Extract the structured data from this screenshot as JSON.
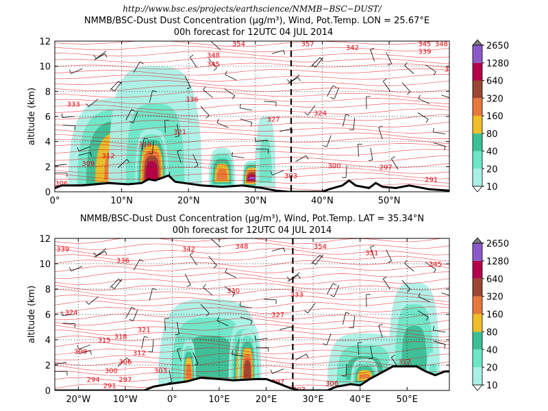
{
  "figure": {
    "url_line": "http://www.bsc.es/projects/earthscience/NMMB−BSC−DUST/"
  },
  "chart_data": [
    {
      "type": "heatmap",
      "title": "NMMB/BSC-Dust Dust Concentration (µg/m³), Wind, Pot.Temp. LON = 25.67°E",
      "subtitle": "00h forecast for 12UTC 04 JUL 2014",
      "xlabel": "",
      "ylabel": "altitude (km)",
      "xlim": [
        0,
        59
      ],
      "ylim": [
        0,
        12
      ],
      "x_ticks": [
        0,
        10,
        20,
        30,
        40,
        50
      ],
      "x_tick_labels": [
        "0°",
        "10°N",
        "20°N",
        "30°N",
        "40°N",
        "50°N"
      ],
      "y_ticks": [
        0,
        2,
        4,
        6,
        8,
        10,
        12
      ],
      "y_tick_labels": [
        "0",
        "2",
        "4",
        "6",
        "8",
        "10",
        "12"
      ],
      "grid": true,
      "cross_section_marker": 35.34,
      "colorbar": {
        "levels": [
          10,
          20,
          40,
          80,
          160,
          320,
          640,
          1280,
          2650
        ],
        "labels": [
          "10",
          "20",
          "40",
          "80",
          "160",
          "320",
          "640",
          "1280",
          "2650"
        ],
        "colors": [
          "#aaf0e6",
          "#6ee6c8",
          "#3cbe96",
          "#f0be28",
          "#e6783c",
          "#9b4632",
          "#b4004b",
          "#8c5ac8"
        ]
      },
      "dust_plumes": [
        {
          "x_range": [
            2,
            20
          ],
          "top_km": 7.5,
          "max_level": 4
        },
        {
          "x_range": [
            8,
            22
          ],
          "top_km": 10.0,
          "max_level": 1
        },
        {
          "x_range": [
            12,
            17
          ],
          "top_km": 5.0,
          "max_level": 6
        },
        {
          "x_range": [
            23,
            27
          ],
          "top_km": 3.5,
          "max_level": 4
        },
        {
          "x_range": [
            28,
            31
          ],
          "top_km": 2.5,
          "max_level": 7
        },
        {
          "x_range": [
            30,
            33
          ],
          "top_km": 6.0,
          "max_level": 1
        }
      ],
      "terrain_km": [
        [
          0,
          0.3
        ],
        [
          1,
          0.5
        ],
        [
          4,
          0.5
        ],
        [
          8,
          0.7
        ],
        [
          11,
          0.6
        ],
        [
          13,
          0.7
        ],
        [
          14,
          1.0
        ],
        [
          15,
          0.9
        ],
        [
          17,
          1.3
        ],
        [
          18,
          0.8
        ],
        [
          22,
          0.5
        ],
        [
          25,
          0.4
        ],
        [
          28,
          0.5
        ],
        [
          31,
          0.3
        ],
        [
          33,
          0.1
        ],
        [
          35,
          0.0
        ],
        [
          40,
          0.0
        ],
        [
          41,
          0.2
        ],
        [
          43,
          0.5
        ],
        [
          44,
          0.9
        ],
        [
          45,
          0.5
        ],
        [
          47,
          0.3
        ],
        [
          48,
          0.7
        ],
        [
          49,
          0.4
        ],
        [
          51,
          0.3
        ],
        [
          53,
          0.5
        ],
        [
          56,
          0.2
        ],
        [
          59,
          0.1
        ]
      ],
      "theta_labels": [
        {
          "x": 1,
          "y": 0.7,
          "text": "306"
        },
        {
          "x": 5,
          "y": 2.3,
          "text": "309"
        },
        {
          "x": 8,
          "y": 2.9,
          "text": "312"
        },
        {
          "x": 2.8,
          "y": 7.0,
          "text": "333"
        },
        {
          "x": 13.5,
          "y": 3.8,
          "text": "318"
        },
        {
          "x": 18.7,
          "y": 4.8,
          "text": "321"
        },
        {
          "x": 20.5,
          "y": 7.4,
          "text": "336"
        },
        {
          "x": 23.7,
          "y": 10.2,
          "text": "345"
        },
        {
          "x": 23.7,
          "y": 10.9,
          "text": "348"
        },
        {
          "x": 27.5,
          "y": 11.8,
          "text": "354"
        },
        {
          "x": 32.7,
          "y": 5.8,
          "text": "327"
        },
        {
          "x": 35.3,
          "y": 1.3,
          "text": "303"
        },
        {
          "x": 37.8,
          "y": 11.8,
          "text": "357"
        },
        {
          "x": 39.7,
          "y": 6.3,
          "text": "324"
        },
        {
          "x": 41.8,
          "y": 2.1,
          "text": "300"
        },
        {
          "x": 44.5,
          "y": 11.5,
          "text": "342"
        },
        {
          "x": 49.5,
          "y": 2.0,
          "text": "297"
        },
        {
          "x": 53.5,
          "y": 0.2,
          "text": "294"
        },
        {
          "x": 56.3,
          "y": 1.0,
          "text": "291"
        },
        {
          "x": 55.3,
          "y": 11.2,
          "text": "339"
        },
        {
          "x": 55.3,
          "y": 11.8,
          "text": "345"
        },
        {
          "x": 57.8,
          "y": 11.8,
          "text": "348"
        },
        {
          "x": 58.6,
          "y": 9.8,
          "text": "3"
        }
      ]
    },
    {
      "type": "heatmap",
      "title": "NMMB/BSC-Dust Dust Concentration (µg/m³), Wind, Pot.Temp. LAT = 35.34°N",
      "subtitle": "00h forecast for 12UTC 04 JUL 2014",
      "xlabel": "",
      "ylabel": "altitude (km)",
      "xlim": [
        -25,
        59
      ],
      "ylim": [
        0,
        12
      ],
      "x_ticks": [
        -20,
        -10,
        0,
        10,
        20,
        30,
        40,
        50
      ],
      "x_tick_labels": [
        "20°W",
        "10°W",
        "0°",
        "10°E",
        "20°E",
        "30°E",
        "40°E",
        "50°E"
      ],
      "y_ticks": [
        0,
        2,
        4,
        6,
        8,
        10,
        12
      ],
      "y_tick_labels": [
        "0",
        "2",
        "4",
        "6",
        "8",
        "10",
        "12"
      ],
      "grid": true,
      "cross_section_marker": 25.67,
      "colorbar": {
        "levels": [
          10,
          20,
          40,
          80,
          160,
          320,
          640,
          1280,
          2650
        ],
        "labels": [
          "10",
          "20",
          "40",
          "80",
          "160",
          "320",
          "640",
          "1280",
          "2650"
        ],
        "colors": [
          "#aaf0e6",
          "#6ee6c8",
          "#3cbe96",
          "#f0be28",
          "#e6783c",
          "#9b4632",
          "#b4004b",
          "#8c5ac8"
        ]
      },
      "dust_plumes": [
        {
          "x_range": [
            -3,
            19
          ],
          "top_km": 7.2,
          "max_level": 2
        },
        {
          "x_range": [
            2,
            5
          ],
          "top_km": 4.0,
          "max_level": 4
        },
        {
          "x_range": [
            12,
            19
          ],
          "top_km": 5.5,
          "max_level": 4
        },
        {
          "x_range": [
            14,
            18
          ],
          "top_km": 4.8,
          "max_level": 5
        },
        {
          "x_range": [
            33,
            49
          ],
          "top_km": 4.5,
          "max_level": 2
        },
        {
          "x_range": [
            38,
            44
          ],
          "top_km": 2.5,
          "max_level": 4
        },
        {
          "x_range": [
            46,
            57
          ],
          "top_km": 8.5,
          "max_level": 2
        },
        {
          "x_range": [
            54,
            57
          ],
          "top_km": 3.0,
          "max_level": 1
        }
      ],
      "terrain_km": [
        [
          -25,
          0
        ],
        [
          -6,
          0
        ],
        [
          -4,
          0.3
        ],
        [
          -1,
          0.5
        ],
        [
          3,
          0.7
        ],
        [
          6,
          1.0
        ],
        [
          10,
          0.9
        ],
        [
          13,
          0.8
        ],
        [
          18,
          0.9
        ],
        [
          20,
          0.9
        ],
        [
          23,
          0.5
        ],
        [
          25,
          0.2
        ],
        [
          27,
          0
        ],
        [
          33,
          0
        ],
        [
          35,
          0.3
        ],
        [
          38,
          0.5
        ],
        [
          40,
          0.4
        ],
        [
          42,
          0.9
        ],
        [
          44,
          1.3
        ],
        [
          47,
          1.9
        ],
        [
          52,
          1.9
        ],
        [
          54,
          1.5
        ],
        [
          56,
          1.2
        ],
        [
          58,
          1.5
        ],
        [
          59,
          1.5
        ]
      ],
      "theta_labels": [
        {
          "x": -23.3,
          "y": 11.2,
          "text": "339"
        },
        {
          "x": -10.5,
          "y": 10.3,
          "text": "336"
        },
        {
          "x": -21.5,
          "y": 6.2,
          "text": "324"
        },
        {
          "x": -14.5,
          "y": 4.0,
          "text": "315"
        },
        {
          "x": -11,
          "y": 4.3,
          "text": "318"
        },
        {
          "x": -6,
          "y": 4.8,
          "text": "321"
        },
        {
          "x": -19.5,
          "y": 3.1,
          "text": "309"
        },
        {
          "x": -7,
          "y": 3.0,
          "text": "312"
        },
        {
          "x": -10,
          "y": 2.3,
          "text": "306"
        },
        {
          "x": -13,
          "y": 1.6,
          "text": "300"
        },
        {
          "x": -2.5,
          "y": 1.6,
          "text": "303"
        },
        {
          "x": -16.8,
          "y": 0.9,
          "text": "294"
        },
        {
          "x": -10,
          "y": 0.9,
          "text": "297"
        },
        {
          "x": -13.3,
          "y": 0.4,
          "text": "291"
        },
        {
          "x": 3.5,
          "y": 11.2,
          "text": "342"
        },
        {
          "x": 13,
          "y": 7.9,
          "text": "330"
        },
        {
          "x": 14.8,
          "y": 11.4,
          "text": "348"
        },
        {
          "x": 22.5,
          "y": 6.0,
          "text": "327"
        },
        {
          "x": 26.5,
          "y": 7.6,
          "text": "333"
        },
        {
          "x": 10,
          "y": 0.2,
          "text": "300"
        },
        {
          "x": 15,
          "y": 0.1,
          "text": "297"
        },
        {
          "x": 22.5,
          "y": 0.7,
          "text": "297"
        },
        {
          "x": 27,
          "y": 0.1,
          "text": "303"
        },
        {
          "x": 34,
          "y": 0.6,
          "text": "306"
        },
        {
          "x": 31.5,
          "y": 11.4,
          "text": "354"
        },
        {
          "x": 42.5,
          "y": 10.9,
          "text": "351"
        },
        {
          "x": 56,
          "y": 10.0,
          "text": "345"
        },
        {
          "x": 49.5,
          "y": 2.3,
          "text": "312"
        }
      ]
    }
  ]
}
